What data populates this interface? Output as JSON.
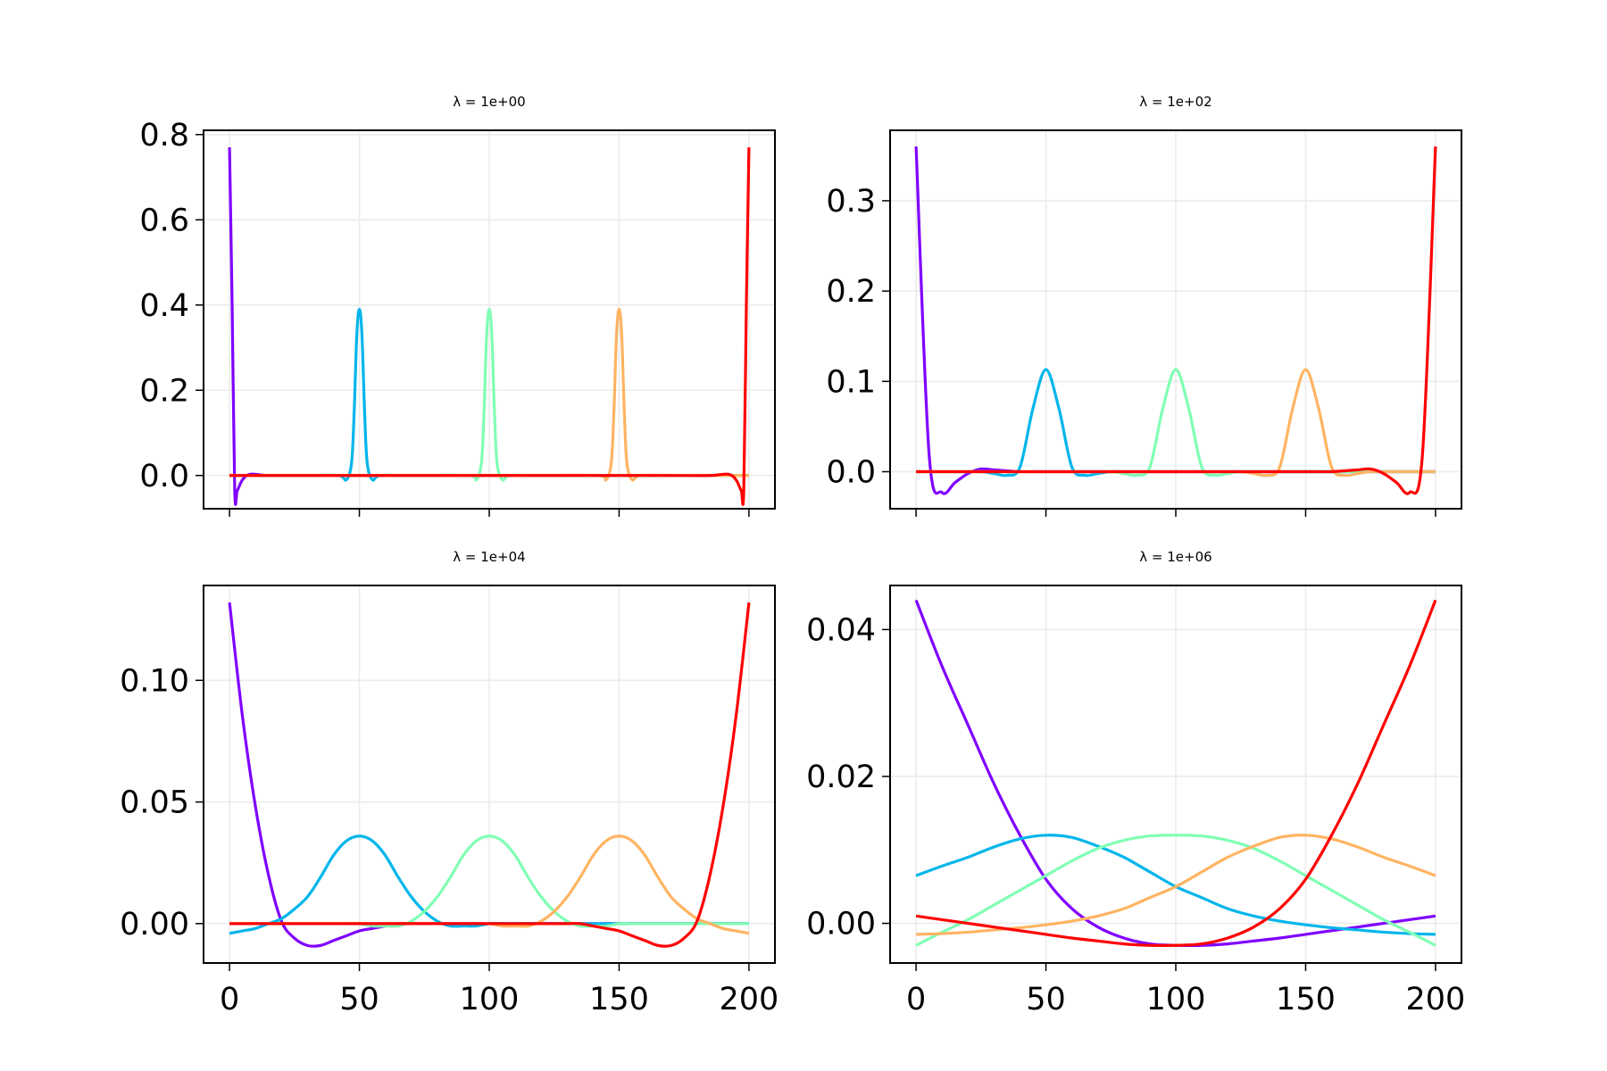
{
  "chart_data": [
    {
      "type": "line",
      "title": "λ = 1e+00",
      "x": [
        0,
        1,
        2,
        3,
        5,
        8,
        15,
        30,
        42,
        45,
        47,
        48,
        49,
        50,
        51,
        52,
        53,
        55,
        58,
        70,
        92,
        95,
        97,
        98,
        99,
        100,
        101,
        102,
        103,
        105,
        108,
        120,
        142,
        145,
        147,
        148,
        149,
        150,
        151,
        152,
        153,
        155,
        158,
        170,
        185,
        192,
        195,
        197,
        198,
        199,
        200
      ],
      "series": [
        {
          "color": "#8000ff",
          "values": [
            0.77,
            0.4,
            -0.035,
            -0.035,
            -0.01,
            0.003,
            0,
            0,
            0,
            0,
            0,
            0,
            0,
            0,
            0,
            0,
            0,
            0,
            0,
            0,
            0,
            0,
            0,
            0,
            0,
            0,
            0,
            0,
            0,
            0,
            0,
            0,
            0,
            0,
            0,
            0,
            0,
            0,
            0,
            0,
            0,
            0,
            0,
            0,
            0,
            0,
            0,
            0,
            0,
            0,
            0
          ]
        },
        {
          "color": "#01b5eb",
          "values": [
            0,
            0,
            0,
            0,
            0,
            0,
            0,
            0,
            0,
            -0.01,
            0.03,
            0.15,
            0.33,
            0.39,
            0.33,
            0.15,
            0.03,
            -0.01,
            0,
            0,
            0,
            0,
            0,
            0,
            0,
            0,
            0,
            0,
            0,
            0,
            0,
            0,
            0,
            0,
            0,
            0,
            0,
            0,
            0,
            0,
            0,
            0,
            0,
            0,
            0,
            0,
            0,
            0,
            0,
            0,
            0
          ]
        },
        {
          "color": "#80ffb4",
          "values": [
            0,
            0,
            0,
            0,
            0,
            0,
            0,
            0,
            0,
            0,
            0,
            0,
            0,
            0,
            0,
            0,
            0,
            0,
            0,
            0,
            0,
            -0.01,
            0.03,
            0.15,
            0.33,
            0.39,
            0.33,
            0.15,
            0.03,
            -0.01,
            0,
            0,
            0,
            0,
            0,
            0,
            0,
            0,
            0,
            0,
            0,
            0,
            0,
            0,
            0,
            0,
            0,
            0,
            0,
            0,
            0
          ]
        },
        {
          "color": "#ffb462",
          "values": [
            0,
            0,
            0,
            0,
            0,
            0,
            0,
            0,
            0,
            0,
            0,
            0,
            0,
            0,
            0,
            0,
            0,
            0,
            0,
            0,
            0,
            0,
            0,
            0,
            0,
            0,
            0,
            0,
            0,
            0,
            0,
            0,
            0,
            -0.01,
            0.03,
            0.15,
            0.33,
            0.39,
            0.33,
            0.15,
            0.03,
            -0.01,
            0,
            0,
            0,
            0,
            0,
            0,
            0,
            0,
            0
          ]
        },
        {
          "color": "#ff0000",
          "values": [
            0,
            0,
            0,
            0,
            0,
            0,
            0,
            0,
            0,
            0,
            0,
            0,
            0,
            0,
            0,
            0,
            0,
            0,
            0,
            0,
            0,
            0,
            0,
            0,
            0,
            0,
            0,
            0,
            0,
            0,
            0,
            0,
            0,
            0,
            0,
            0,
            0,
            0,
            0,
            0,
            0,
            0,
            0,
            0,
            0,
            0.003,
            -0.01,
            -0.035,
            -0.035,
            0.4,
            0.77
          ]
        }
      ],
      "xlim": [
        -10,
        210
      ],
      "ylim": [
        -0.078,
        0.81
      ],
      "xticks": [
        0,
        50,
        100,
        150,
        200
      ],
      "yticks": [
        {
          "value": 0,
          "label": "0.0"
        },
        0.2,
        0.4,
        0.6,
        0.8
      ],
      "grid": true,
      "show_xticklabels": false
    },
    {
      "type": "line",
      "title": "λ = 1e+02",
      "x": [
        0,
        5,
        10,
        15,
        20,
        25,
        30,
        35,
        40,
        45,
        50,
        55,
        60,
        65,
        70,
        75,
        80,
        85,
        90,
        95,
        100,
        105,
        110,
        115,
        120,
        125,
        130,
        135,
        140,
        145,
        150,
        155,
        160,
        165,
        170,
        175,
        180,
        185,
        190,
        195,
        200
      ],
      "series": [
        {
          "color": "#8000ff",
          "values": [
            0.36,
            0.02,
            -0.023,
            -0.012,
            -0.002,
            0.003,
            0.002,
            0.001,
            0,
            0,
            0,
            0,
            0,
            0,
            0,
            0,
            0,
            0,
            0,
            0,
            0,
            0,
            0,
            0,
            0,
            0,
            0,
            0,
            0,
            0,
            0,
            0,
            0,
            0,
            0,
            0,
            0,
            0,
            0,
            0,
            0
          ]
        },
        {
          "color": "#01b5eb",
          "values": [
            0,
            0,
            0,
            0,
            0,
            0,
            -0.002,
            -0.004,
            0.005,
            0.07,
            0.113,
            0.07,
            0.005,
            -0.004,
            -0.002,
            0,
            0,
            0,
            0,
            0,
            0,
            0,
            0,
            0,
            0,
            0,
            0,
            0,
            0,
            0,
            0,
            0,
            0,
            0,
            0,
            0,
            0,
            0,
            0,
            0,
            0
          ]
        },
        {
          "color": "#80ffb4",
          "values": [
            0,
            0,
            0,
            0,
            0,
            0,
            0,
            0,
            0,
            0,
            0,
            0,
            0,
            0,
            0,
            0,
            -0.002,
            -0.004,
            0.005,
            0.07,
            0.113,
            0.07,
            0.005,
            -0.004,
            -0.002,
            0,
            0,
            0,
            0,
            0,
            0,
            0,
            0,
            0,
            0,
            0,
            0,
            0,
            0,
            0,
            0
          ]
        },
        {
          "color": "#ffb462",
          "values": [
            0,
            0,
            0,
            0,
            0,
            0,
            0,
            0,
            0,
            0,
            0,
            0,
            0,
            0,
            0,
            0,
            0,
            0,
            0,
            0,
            0,
            0,
            0,
            0,
            0,
            0,
            -0.002,
            -0.004,
            0.005,
            0.07,
            0.113,
            0.07,
            0.005,
            -0.004,
            -0.002,
            0,
            0,
            0,
            0,
            0,
            0
          ]
        },
        {
          "color": "#ff0000",
          "values": [
            0,
            0,
            0,
            0,
            0,
            0,
            0,
            0,
            0,
            0,
            0,
            0,
            0,
            0,
            0,
            0,
            0,
            0,
            0,
            0,
            0,
            0,
            0,
            0,
            0,
            0,
            0,
            0,
            0,
            0,
            0,
            0,
            0,
            0.001,
            0.002,
            0.003,
            -0.002,
            -0.012,
            -0.023,
            0.02,
            0.36
          ]
        }
      ],
      "xlim": [
        -10,
        210
      ],
      "ylim": [
        -0.041,
        0.378
      ],
      "xticks": [
        0,
        50,
        100,
        150,
        200
      ],
      "yticks": [
        {
          "value": 0,
          "label": "0.0"
        },
        0.1,
        0.2,
        0.3
      ],
      "grid": true,
      "show_xticklabels": false
    },
    {
      "type": "line",
      "title": "λ = 1e+04",
      "x": [
        0,
        5,
        10,
        15,
        20,
        25,
        30,
        35,
        40,
        45,
        50,
        55,
        60,
        65,
        70,
        75,
        80,
        85,
        90,
        95,
        100,
        105,
        110,
        115,
        120,
        125,
        130,
        135,
        140,
        145,
        150,
        155,
        160,
        165,
        170,
        175,
        180,
        185,
        190,
        195,
        200
      ],
      "series": [
        {
          "color": "#8000ff",
          "values": [
            0.132,
            0.085,
            0.048,
            0.02,
            0.001,
            -0.006,
            -0.009,
            -0.009,
            -0.007,
            -0.005,
            -0.003,
            -0.002,
            -0.001,
            0,
            0,
            0,
            0,
            0,
            0,
            0,
            0,
            0,
            0,
            0,
            0,
            0,
            0,
            0,
            0,
            0,
            0,
            0,
            0,
            0,
            0,
            0,
            0,
            0,
            0,
            0,
            0
          ]
        },
        {
          "color": "#01b5eb",
          "values": [
            -0.004,
            -0.003,
            -0.002,
            0,
            0.002,
            0.006,
            0.011,
            0.019,
            0.028,
            0.034,
            0.036,
            0.034,
            0.028,
            0.019,
            0.011,
            0.005,
            0.001,
            -0.001,
            -0.001,
            -0.001,
            0,
            0,
            0,
            0,
            0,
            0,
            0,
            0,
            0,
            0,
            0,
            0,
            0,
            0,
            0,
            0,
            0,
            0,
            0,
            0,
            0
          ]
        },
        {
          "color": "#80ffb4",
          "values": [
            0,
            0,
            0,
            0,
            0,
            0,
            0,
            0,
            0,
            0,
            0,
            -0.001,
            -0.001,
            -0.001,
            0.001,
            0.005,
            0.011,
            0.019,
            0.028,
            0.034,
            0.036,
            0.034,
            0.028,
            0.019,
            0.011,
            0.005,
            0.001,
            -0.001,
            -0.001,
            -0.001,
            0,
            0,
            0,
            0,
            0,
            0,
            0,
            0,
            0,
            0,
            0
          ]
        },
        {
          "color": "#ffb462",
          "values": [
            0,
            0,
            0,
            0,
            0,
            0,
            0,
            0,
            0,
            0,
            0,
            0,
            0,
            0,
            0,
            0,
            0,
            0,
            0,
            0,
            0,
            -0.001,
            -0.001,
            -0.001,
            0.001,
            0.005,
            0.011,
            0.019,
            0.028,
            0.034,
            0.036,
            0.034,
            0.028,
            0.019,
            0.011,
            0.006,
            0.002,
            0,
            -0.002,
            -0.003,
            -0.004
          ]
        },
        {
          "color": "#ff0000",
          "values": [
            0,
            0,
            0,
            0,
            0,
            0,
            0,
            0,
            0,
            0,
            0,
            0,
            0,
            0,
            0,
            0,
            0,
            0,
            0,
            0,
            0,
            0,
            0,
            0,
            0,
            0,
            0,
            0,
            -0.001,
            -0.002,
            -0.003,
            -0.005,
            -0.007,
            -0.009,
            -0.009,
            -0.006,
            0.001,
            0.02,
            0.048,
            0.085,
            0.132
          ]
        }
      ],
      "xlim": [
        -10,
        210
      ],
      "ylim": [
        -0.0162,
        0.139
      ],
      "xticks": [
        0,
        50,
        100,
        150,
        200
      ],
      "yticks": [
        {
          "value": 0,
          "label": "0.00"
        },
        0.05,
        {
          "value": 0.1,
          "label": "0.10"
        }
      ],
      "grid": true,
      "show_xticklabels": true
    },
    {
      "type": "line",
      "title": "λ = 1e+06",
      "x": [
        0,
        10,
        20,
        30,
        40,
        50,
        60,
        70,
        80,
        90,
        100,
        110,
        120,
        130,
        140,
        150,
        160,
        170,
        180,
        190,
        200
      ],
      "series": [
        {
          "color": "#8000ff",
          "values": [
            0.044,
            0.035,
            0.027,
            0.019,
            0.012,
            0.006,
            0.002,
            -0.0005,
            -0.002,
            -0.0028,
            -0.003,
            -0.003,
            -0.0028,
            -0.0024,
            -0.002,
            -0.0015,
            -0.001,
            -0.0005,
            0,
            0.0005,
            0.001
          ]
        },
        {
          "color": "#01b5eb",
          "values": [
            0.0065,
            0.0078,
            0.009,
            0.0104,
            0.0115,
            0.012,
            0.0117,
            0.0105,
            0.009,
            0.007,
            0.005,
            0.0035,
            0.002,
            0.001,
            0.0003,
            -0.0002,
            -0.0006,
            -0.0009,
            -0.0012,
            -0.0014,
            -0.0015
          ]
        },
        {
          "color": "#80ffb4",
          "values": [
            -0.003,
            -0.0012,
            0.0005,
            0.0025,
            0.0045,
            0.0065,
            0.0085,
            0.0102,
            0.0113,
            0.0119,
            0.012,
            0.0119,
            0.0113,
            0.0102,
            0.0085,
            0.0065,
            0.0045,
            0.0025,
            0.0005,
            -0.0012,
            -0.003
          ]
        },
        {
          "color": "#ffb462",
          "values": [
            -0.0015,
            -0.0014,
            -0.0012,
            -0.0009,
            -0.0006,
            -0.0002,
            0.0003,
            0.001,
            0.002,
            0.0035,
            0.005,
            0.007,
            0.009,
            0.0105,
            0.0117,
            0.012,
            0.0115,
            0.0104,
            0.009,
            0.0078,
            0.0065
          ]
        },
        {
          "color": "#ff0000",
          "values": [
            0.001,
            0.0005,
            0,
            -0.0005,
            -0.001,
            -0.0015,
            -0.002,
            -0.0024,
            -0.0028,
            -0.003,
            -0.003,
            -0.0028,
            -0.002,
            -0.0005,
            0.002,
            0.006,
            0.012,
            0.019,
            0.027,
            0.035,
            0.044
          ]
        }
      ],
      "xlim": [
        -10,
        210
      ],
      "ylim": [
        -0.0054,
        0.046
      ],
      "xticks": [
        0,
        50,
        100,
        150,
        200
      ],
      "yticks": [
        {
          "value": 0,
          "label": "0.00"
        },
        0.02,
        0.04
      ],
      "grid": true,
      "show_xticklabels": true
    }
  ]
}
